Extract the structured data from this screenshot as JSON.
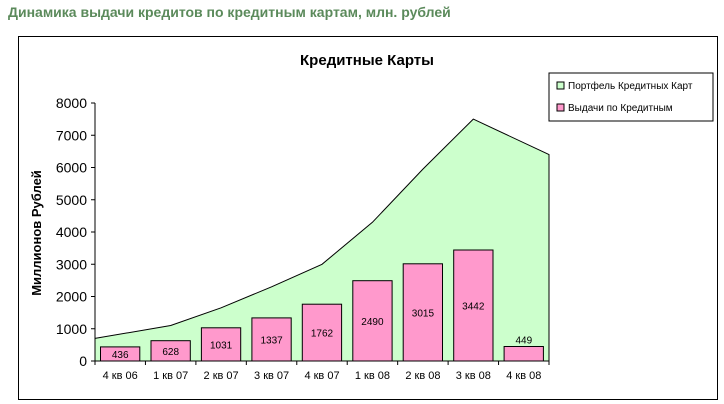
{
  "page": {
    "heading": "Динамика выдачи кредитов по кредитным картам, млн. рублей"
  },
  "colors": {
    "heading": "#5b8a5b",
    "area_fill": "#ccffcc",
    "bar_fill": "#ff99cc",
    "outline": "#000000"
  },
  "chart_data": {
    "type": "bar",
    "title": "Кредитные Карты",
    "xlabel": "",
    "ylabel": "Миллионов Рублей",
    "ylim": [
      0,
      8000
    ],
    "yticks": [
      0,
      1000,
      2000,
      3000,
      4000,
      5000,
      6000,
      7000,
      8000
    ],
    "grid": false,
    "legend_position": "top-right",
    "categories": [
      "4 кв 06",
      "1 кв 07",
      "2 кв 07",
      "3 кв 07",
      "4 кв 07",
      "1 кв 08",
      "2 кв 08",
      "3 кв 08",
      "4 кв 08"
    ],
    "series": [
      {
        "name": "Портфель Кредитных Карт",
        "type": "area",
        "values": [
          700,
          1100,
          1650,
          2300,
          3000,
          4300,
          5950,
          7500,
          6400
        ]
      },
      {
        "name": "Выдачи по Кредитным",
        "type": "bar",
        "values": [
          436,
          628,
          1031,
          1337,
          1762,
          2490,
          3015,
          3442,
          449
        ]
      }
    ]
  }
}
